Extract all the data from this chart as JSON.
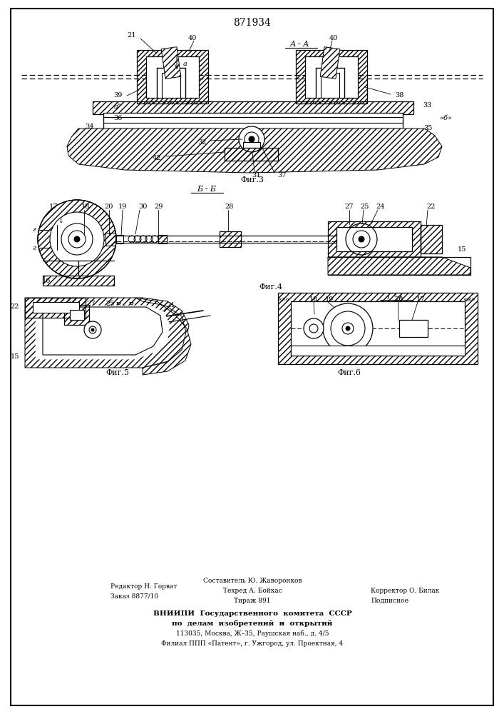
{
  "patent_number": "871934",
  "bg": "#ffffff",
  "footer": {
    "editor": "Редактор Н. Горват",
    "order": "Заказ 8877/10",
    "composer": "Составитель Ю. Жаворонков",
    "techred": "Техред А. Бойкас",
    "corrector": "Корректор О. Билак",
    "tirazh": "Тираж 891",
    "podpisnoe": "Подписное",
    "vniip1": "ВНИИПИ  Государственного  комитета  СССР",
    "vniip2": "по  делам  изобретений  и  открытий",
    "address1": "113035, Москва, Ж–35, Раушская наб., д. 4/5",
    "address2": "Филиал ППП «Патент», г. Ужгород, ул. Проектная, 4"
  }
}
